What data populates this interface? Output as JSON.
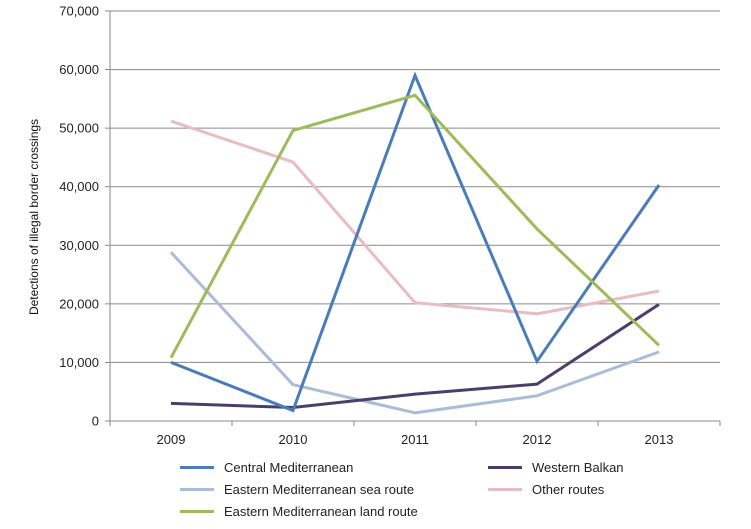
{
  "chart_data": {
    "type": "line",
    "title": "",
    "xlabel": "",
    "ylabel": "Detections of illegal border crossings",
    "categories": [
      "2009",
      "2010",
      "2011",
      "2012",
      "2013"
    ],
    "ylim": [
      0,
      70000
    ],
    "yticks": [
      0,
      10000,
      20000,
      30000,
      40000,
      50000,
      60000,
      70000
    ],
    "ytick_labels": [
      "0",
      "10,000",
      "20,000",
      "30,000",
      "40,000",
      "50,000",
      "60,000",
      "70,000"
    ],
    "grid": true,
    "legend_position": "bottom",
    "series": [
      {
        "name": "Central Mediterranean",
        "color": "#4a7db8",
        "values": [
          10000,
          1800,
          59000,
          10200,
          40300
        ]
      },
      {
        "name": "Western Balkan",
        "color": "#4a3f6b",
        "values": [
          3000,
          2300,
          4600,
          6300,
          19900
        ]
      },
      {
        "name": "Eastern Mediterranean sea route",
        "color": "#a9bcd8",
        "values": [
          28800,
          6200,
          1400,
          4300,
          11800
        ]
      },
      {
        "name": "Other routes",
        "color": "#e8bcc3",
        "values": [
          51200,
          44200,
          20200,
          18300,
          22200
        ]
      },
      {
        "name": "Eastern Mediterranean land route",
        "color": "#9dbb5a",
        "values": [
          10800,
          49600,
          55600,
          32800,
          12900
        ]
      }
    ]
  }
}
